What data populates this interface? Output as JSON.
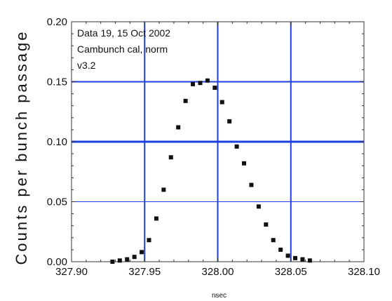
{
  "chart_data": {
    "type": "scatter",
    "title": "",
    "xlabel": "nsec",
    "ylabel": "Counts per bunch passage",
    "xlim": [
      327.9,
      328.1
    ],
    "ylim": [
      0.0,
      0.2
    ],
    "x_ticks": [
      327.9,
      327.95,
      328.0,
      328.05,
      328.1
    ],
    "x_tick_labels": [
      "327.90",
      "327.95",
      "328.00",
      "328.05",
      "328.10"
    ],
    "y_ticks": [
      0.0,
      0.05,
      0.1,
      0.15,
      0.2
    ],
    "y_tick_labels": [
      "0.00",
      "0.05",
      "0.10",
      "0.15",
      "0.20"
    ],
    "annotations": [
      "Data 19, 15 Oct 2002",
      "Cambunch cal, norm",
      "v3.2"
    ],
    "guide_lines": {
      "vertical_x": [
        327.95,
        328.0,
        328.05
      ],
      "horizontal_y": [
        0.1,
        0.15,
        0.05
      ]
    },
    "colors": {
      "points": "#111111",
      "guide_lines": "#1f3fe0",
      "axes": "#333333"
    },
    "series": [
      {
        "x": [
          327.928,
          327.933,
          327.938,
          327.943,
          327.948,
          327.953,
          327.958,
          327.963,
          327.968,
          327.973,
          327.978,
          327.983,
          327.988,
          327.993,
          327.998,
          328.003,
          328.008,
          328.013,
          328.018,
          328.023,
          328.028,
          328.033,
          328.038,
          328.043,
          328.048,
          328.053,
          328.058,
          328.063
        ],
        "y": [
          0.0,
          0.001,
          0.002,
          0.004,
          0.008,
          0.018,
          0.036,
          0.06,
          0.087,
          0.112,
          0.134,
          0.148,
          0.149,
          0.151,
          0.145,
          0.133,
          0.117,
          0.096,
          0.082,
          0.064,
          0.046,
          0.031,
          0.018,
          0.01,
          0.005,
          0.003,
          0.002,
          0.001
        ]
      }
    ]
  }
}
